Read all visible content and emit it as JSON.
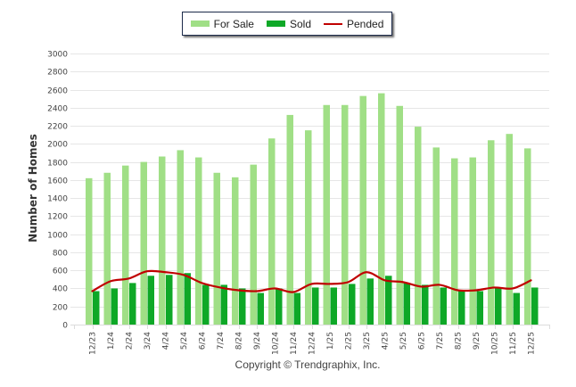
{
  "chart_data": {
    "type": "bar",
    "title": "",
    "xlabel": "",
    "ylabel": "Number of Homes",
    "ylim": [
      0,
      3000
    ],
    "yticks": [
      0,
      200,
      400,
      600,
      800,
      1000,
      1200,
      1400,
      1600,
      1800,
      2000,
      2200,
      2400,
      2600,
      2800,
      3000
    ],
    "grid": true,
    "legend_position": "top-center",
    "categories": [
      "12/23",
      "1/24",
      "2/24",
      "3/24",
      "4/24",
      "5/24",
      "6/24",
      "7/24",
      "8/24",
      "9/24",
      "10/24",
      "11/24",
      "12/24",
      "1/25",
      "2/25",
      "3/25",
      "4/25",
      "5/25",
      "6/25",
      "7/25",
      "8/25",
      "9/25",
      "10/25",
      "11/25",
      "12/25"
    ],
    "series": [
      {
        "name": "For Sale",
        "type": "bar",
        "color": "#a0df86",
        "values": [
          1620,
          1680,
          1760,
          1800,
          1860,
          1930,
          1850,
          1680,
          1630,
          1770,
          2060,
          2320,
          2150,
          2430,
          2430,
          2530,
          2560,
          2420,
          2190,
          1960,
          1840,
          1850,
          2040,
          2110,
          1950
        ]
      },
      {
        "name": "Sold",
        "type": "bar",
        "color": "#0ea827",
        "values": [
          370,
          400,
          460,
          540,
          550,
          570,
          440,
          440,
          400,
          350,
          400,
          350,
          410,
          410,
          450,
          510,
          540,
          460,
          440,
          410,
          380,
          370,
          410,
          350,
          410
        ]
      },
      {
        "name": "Pended",
        "type": "line",
        "color": "#c00000",
        "values": [
          370,
          480,
          510,
          590,
          580,
          550,
          460,
          410,
          380,
          370,
          400,
          360,
          450,
          450,
          470,
          580,
          490,
          470,
          420,
          440,
          380,
          380,
          410,
          400,
          490
        ]
      }
    ]
  },
  "legend": {
    "items": [
      {
        "label": "For Sale",
        "color": "#a0df86"
      },
      {
        "label": "Sold",
        "color": "#0ea827"
      },
      {
        "label": "Pended",
        "color": "#c00000"
      }
    ]
  },
  "footer": {
    "copyright": "Copyright © Trendgraphix, Inc."
  }
}
